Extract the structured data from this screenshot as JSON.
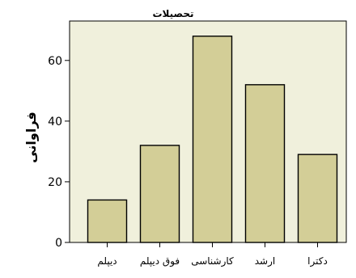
{
  "chart_data": {
    "type": "bar",
    "title": "تحصیلات",
    "xlabel": "",
    "ylabel": "فراوانی",
    "categories": [
      "دیپلم",
      "فوق دیپلم",
      "کارشناسی",
      "ارشد",
      "دکترا"
    ],
    "values": [
      14,
      32,
      68,
      52,
      29
    ],
    "y_ticks": [
      0,
      20,
      40,
      60
    ],
    "ylim": [
      0,
      73
    ],
    "grid": false,
    "legend": "none"
  },
  "colors": {
    "plot_background": "#f0f0dc",
    "bar_fill": "#d3ce97",
    "bar_stroke": "#000000",
    "axis": "#000000"
  }
}
